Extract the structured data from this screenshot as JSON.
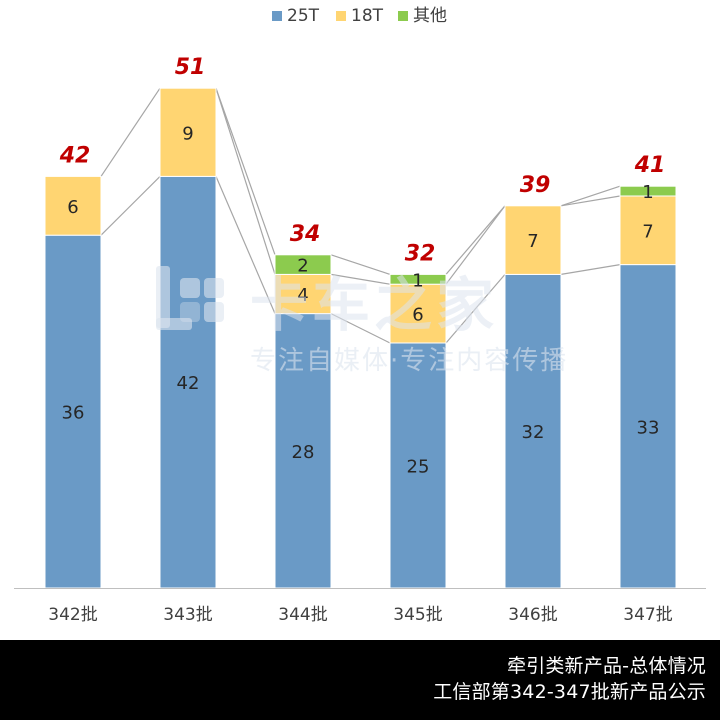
{
  "chart_data": {
    "type": "bar",
    "stacked": true,
    "categories": [
      "342批",
      "343批",
      "344批",
      "345批",
      "346批",
      "347批"
    ],
    "series": [
      {
        "name": "25T",
        "values": [
          36,
          42,
          28,
          25,
          32,
          33
        ],
        "color": "#6A9AC6"
      },
      {
        "name": "18T",
        "values": [
          6,
          9,
          4,
          6,
          7,
          7
        ],
        "color": "#FFD572"
      },
      {
        "name": "其他",
        "values": [
          0,
          0,
          2,
          1,
          0,
          1
        ],
        "color": "#8CCB4E"
      }
    ],
    "totals": [
      42,
      51,
      34,
      32,
      39,
      41
    ],
    "total_label_color": "#C00000",
    "ylim": [
      0,
      60
    ],
    "legend_position": "top-center",
    "grid": false,
    "connector_lines": true
  },
  "watermark": {
    "title": "卡车之家",
    "subtitle": "专注自媒体·专注内容传播"
  },
  "footer": {
    "line1": "牵引类新产品-总体情况",
    "line2": "工信部第342-347批新产品公示"
  }
}
